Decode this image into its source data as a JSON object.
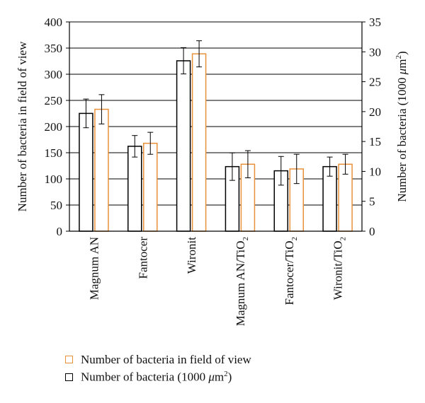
{
  "chart_data": {
    "type": "bar",
    "categories": [
      "Magnum AN",
      "Fantocer",
      "Wironit",
      "Magnum AN/TiO2",
      "Fantocer/TiO2",
      "Wironit/TiO2"
    ],
    "series": [
      {
        "name": "Number of bacteria (1000 μm²)",
        "axis": "right",
        "color": "#000000",
        "values": [
          19.7,
          14.2,
          28.5,
          10.8,
          10.1,
          10.8
        ],
        "error": [
          2.4,
          1.8,
          2.2,
          2.3,
          2.4,
          1.6
        ]
      },
      {
        "name": "Number of bacteria in field of view",
        "axis": "left",
        "color": "#e8913a",
        "values": [
          233,
          168,
          339,
          128,
          119,
          128
        ],
        "error": [
          28,
          21,
          25,
          26,
          28,
          19
        ]
      }
    ],
    "y_left": {
      "label": "Number of bacteria in field of view",
      "lim": [
        0,
        400
      ],
      "ticks": [
        0,
        50,
        100,
        150,
        200,
        250,
        300,
        350,
        400
      ]
    },
    "y_right": {
      "label": "Number of bacteria (1000 μm²)",
      "lim": [
        0,
        35
      ],
      "ticks": [
        0,
        5,
        10,
        15,
        20,
        25,
        30,
        35
      ]
    },
    "grid": true,
    "legend_position": "bottom-left"
  },
  "legend": {
    "items": [
      {
        "label": "Number of bacteria in field of view",
        "color": "#e8913a"
      },
      {
        "label_main": "Number of bacteria (1000 ",
        "label_mu": "μ",
        "label_unit": "m",
        "label_sup": "2",
        "label_close": ")",
        "color": "#000000"
      }
    ]
  },
  "right_axis_label_parts": {
    "main": "Number of bacteria (1000 ",
    "mu": "μ",
    "unit": "m",
    "sup": "2",
    "close": ")"
  },
  "category_label_parts": [
    {
      "main": "Magnum AN",
      "sub": ""
    },
    {
      "main": "Fantocer",
      "sub": ""
    },
    {
      "main": "Wironit",
      "sub": ""
    },
    {
      "main": "Magnum AN/TiO",
      "sub": "2"
    },
    {
      "main": "Fantocer/TiO",
      "sub": "2"
    },
    {
      "main": "Wironit/TiO",
      "sub": "2"
    }
  ]
}
